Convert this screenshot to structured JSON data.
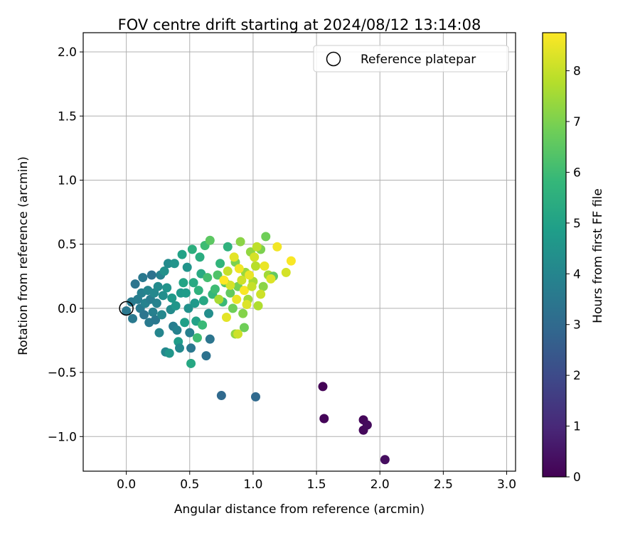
{
  "chart_data": {
    "type": "scatter",
    "title": "FOV centre drift starting at 2024/08/12 13:14:08",
    "xlabel": "Angular distance from reference (arcmin)",
    "ylabel": "Rotation from reference (arcmin)",
    "xlim": [
      -0.34,
      3.07
    ],
    "ylim": [
      -1.27,
      2.15
    ],
    "xticks": [
      0.0,
      0.5,
      1.0,
      1.5,
      2.0,
      2.5,
      3.0
    ],
    "xtick_labels": [
      "0.0",
      "0.5",
      "1.0",
      "1.5",
      "2.0",
      "2.5",
      "3.0"
    ],
    "yticks": [
      -1.0,
      -0.5,
      0.0,
      0.5,
      1.0,
      1.5,
      2.0
    ],
    "ytick_labels": [
      "−1.0",
      "−0.5",
      "0.0",
      "0.5",
      "1.0",
      "1.5",
      "2.0"
    ],
    "grid": true,
    "legend": {
      "placement": "upper right",
      "entries": [
        "Reference platepar"
      ]
    },
    "reference_point": {
      "x": 0.0,
      "y": 0.0
    },
    "colorbar": {
      "label": "Hours from first FF file",
      "range": [
        0,
        8.75
      ],
      "ticks": [
        0,
        1,
        2,
        3,
        4,
        5,
        6,
        7,
        8
      ],
      "tick_labels": [
        "0",
        "1",
        "2",
        "3",
        "4",
        "5",
        "6",
        "7",
        "8"
      ],
      "colormap": [
        "#440154",
        "#482878",
        "#3e4989",
        "#31688e",
        "#26828e",
        "#1f9e89",
        "#35b779",
        "#6ece58",
        "#b5de2b",
        "#fde725"
      ]
    },
    "series": [
      {
        "points": [
          {
            "x": 1.55,
            "y": -0.61,
            "c": 0.05
          },
          {
            "x": 1.56,
            "y": -0.86,
            "c": 0.1
          },
          {
            "x": 1.87,
            "y": -0.87,
            "c": 0.15
          },
          {
            "x": 1.87,
            "y": -0.95,
            "c": 0.2
          },
          {
            "x": 1.9,
            "y": -0.91,
            "c": 0.25
          },
          {
            "x": 2.04,
            "y": -1.18,
            "c": 0.3
          },
          {
            "x": 0.75,
            "y": -0.68,
            "c": 3.0
          },
          {
            "x": 1.02,
            "y": -0.69,
            "c": 3.0
          },
          {
            "x": 0.0,
            "y": -0.02,
            "c": 3.5
          },
          {
            "x": 0.04,
            "y": 0.05,
            "c": 3.6
          },
          {
            "x": 0.05,
            "y": -0.08,
            "c": 3.55
          },
          {
            "x": 0.07,
            "y": 0.19,
            "c": 3.4
          },
          {
            "x": 0.09,
            "y": 0.07,
            "c": 3.7
          },
          {
            "x": 0.11,
            "y": 0.0,
            "c": 3.6
          },
          {
            "x": 0.12,
            "y": 0.12,
            "c": 3.8
          },
          {
            "x": 0.13,
            "y": 0.24,
            "c": 3.5
          },
          {
            "x": 0.14,
            "y": -0.05,
            "c": 3.4
          },
          {
            "x": 0.15,
            "y": 0.04,
            "c": 3.9
          },
          {
            "x": 0.17,
            "y": 0.14,
            "c": 4.0
          },
          {
            "x": 0.18,
            "y": -0.11,
            "c": 3.6
          },
          {
            "x": 0.19,
            "y": 0.07,
            "c": 3.7
          },
          {
            "x": 0.2,
            "y": 0.26,
            "c": 3.3
          },
          {
            "x": 0.21,
            "y": -0.03,
            "c": 3.8
          },
          {
            "x": 0.22,
            "y": 0.12,
            "c": 4.1
          },
          {
            "x": 0.23,
            "y": -0.09,
            "c": 3.5
          },
          {
            "x": 0.24,
            "y": 0.04,
            "c": 3.9
          },
          {
            "x": 0.25,
            "y": 0.17,
            "c": 4.2
          },
          {
            "x": 0.26,
            "y": -0.19,
            "c": 4.0
          },
          {
            "x": 0.27,
            "y": 0.26,
            "c": 3.9
          },
          {
            "x": 0.28,
            "y": -0.05,
            "c": 4.1
          },
          {
            "x": 0.29,
            "y": 0.1,
            "c": 4.3
          },
          {
            "x": 0.3,
            "y": 0.29,
            "c": 4.4
          },
          {
            "x": 0.31,
            "y": -0.34,
            "c": 4.1
          },
          {
            "x": 0.32,
            "y": 0.16,
            "c": 4.5
          },
          {
            "x": 0.33,
            "y": 0.35,
            "c": 4.2
          },
          {
            "x": 0.34,
            "y": -0.35,
            "c": 4.6
          },
          {
            "x": 0.35,
            "y": -0.01,
            "c": 4.2
          },
          {
            "x": 0.36,
            "y": 0.08,
            "c": 4.7
          },
          {
            "x": 0.37,
            "y": -0.14,
            "c": 3.7
          },
          {
            "x": 0.38,
            "y": 0.35,
            "c": 4.5
          },
          {
            "x": 0.39,
            "y": 0.02,
            "c": 4.6
          },
          {
            "x": 0.4,
            "y": -0.17,
            "c": 3.9
          },
          {
            "x": 0.41,
            "y": -0.26,
            "c": 4.8
          },
          {
            "x": 0.42,
            "y": -0.31,
            "c": 4.1
          },
          {
            "x": 0.43,
            "y": 0.12,
            "c": 4.7
          },
          {
            "x": 0.44,
            "y": 0.42,
            "c": 5.0
          },
          {
            "x": 0.45,
            "y": 0.2,
            "c": 5.1
          },
          {
            "x": 0.46,
            "y": -0.11,
            "c": 4.9
          },
          {
            "x": 0.47,
            "y": 0.12,
            "c": 4.8
          },
          {
            "x": 0.48,
            "y": 0.32,
            "c": 4.5
          },
          {
            "x": 0.49,
            "y": 0.0,
            "c": 4.4
          },
          {
            "x": 0.5,
            "y": -0.19,
            "c": 3.8
          },
          {
            "x": 0.51,
            "y": -0.31,
            "c": 3.5
          },
          {
            "x": 0.51,
            "y": -0.43,
            "c": 5.2
          },
          {
            "x": 0.52,
            "y": 0.46,
            "c": 5.5
          },
          {
            "x": 0.53,
            "y": 0.2,
            "c": 5.3
          },
          {
            "x": 0.54,
            "y": 0.04,
            "c": 4.7
          },
          {
            "x": 0.55,
            "y": -0.1,
            "c": 5.0
          },
          {
            "x": 0.56,
            "y": -0.23,
            "c": 6.0
          },
          {
            "x": 0.57,
            "y": 0.14,
            "c": 5.6
          },
          {
            "x": 0.58,
            "y": 0.4,
            "c": 5.4
          },
          {
            "x": 0.59,
            "y": 0.27,
            "c": 5.3
          },
          {
            "x": 0.6,
            "y": -0.13,
            "c": 5.9
          },
          {
            "x": 0.61,
            "y": 0.06,
            "c": 5.2
          },
          {
            "x": 0.62,
            "y": 0.49,
            "c": 6.0
          },
          {
            "x": 0.63,
            "y": -0.37,
            "c": 3.3
          },
          {
            "x": 0.64,
            "y": 0.24,
            "c": 6.1
          },
          {
            "x": 0.65,
            "y": -0.04,
            "c": 4.3
          },
          {
            "x": 0.66,
            "y": 0.53,
            "c": 6.5
          },
          {
            "x": 0.66,
            "y": -0.24,
            "c": 3.4
          },
          {
            "x": 0.68,
            "y": 0.11,
            "c": 5.8
          },
          {
            "x": 0.7,
            "y": 0.15,
            "c": 6.0
          },
          {
            "x": 0.72,
            "y": 0.26,
            "c": 6.3
          },
          {
            "x": 0.74,
            "y": 0.35,
            "c": 5.7
          },
          {
            "x": 0.76,
            "y": 0.05,
            "c": 5.9
          },
          {
            "x": 0.78,
            "y": 0.2,
            "c": 6.4
          },
          {
            "x": 0.8,
            "y": 0.48,
            "c": 5.6
          },
          {
            "x": 0.82,
            "y": 0.12,
            "c": 6.6
          },
          {
            "x": 0.84,
            "y": 0.0,
            "c": 6.8
          },
          {
            "x": 0.86,
            "y": 0.36,
            "c": 7.0
          },
          {
            "x": 0.88,
            "y": 0.17,
            "c": 6.9
          },
          {
            "x": 0.9,
            "y": 0.52,
            "c": 7.2
          },
          {
            "x": 0.92,
            "y": -0.04,
            "c": 7.1
          },
          {
            "x": 0.94,
            "y": 0.28,
            "c": 7.4
          },
          {
            "x": 0.96,
            "y": 0.07,
            "c": 7.5
          },
          {
            "x": 0.98,
            "y": 0.44,
            "c": 7.3
          },
          {
            "x": 1.0,
            "y": 0.21,
            "c": 7.6
          },
          {
            "x": 1.02,
            "y": 0.33,
            "c": 7.8
          },
          {
            "x": 1.04,
            "y": 0.02,
            "c": 7.7
          },
          {
            "x": 1.06,
            "y": 0.46,
            "c": 7.0
          },
          {
            "x": 1.08,
            "y": 0.17,
            "c": 7.2
          },
          {
            "x": 1.1,
            "y": 0.56,
            "c": 6.8
          },
          {
            "x": 1.12,
            "y": 0.26,
            "c": 7.5
          },
          {
            "x": 1.16,
            "y": 0.25,
            "c": 6.6
          },
          {
            "x": 0.86,
            "y": -0.2,
            "c": 7.3
          },
          {
            "x": 0.93,
            "y": -0.15,
            "c": 6.8
          },
          {
            "x": 0.8,
            "y": 0.29,
            "c": 8.0
          },
          {
            "x": 0.82,
            "y": 0.18,
            "c": 8.2
          },
          {
            "x": 0.85,
            "y": 0.4,
            "c": 8.4
          },
          {
            "x": 0.87,
            "y": 0.07,
            "c": 8.5
          },
          {
            "x": 0.89,
            "y": 0.31,
            "c": 8.6
          },
          {
            "x": 0.91,
            "y": 0.22,
            "c": 8.1
          },
          {
            "x": 0.93,
            "y": 0.14,
            "c": 8.7
          },
          {
            "x": 0.95,
            "y": 0.03,
            "c": 8.3
          },
          {
            "x": 0.97,
            "y": 0.26,
            "c": 8.5
          },
          {
            "x": 0.99,
            "y": 0.17,
            "c": 8.0
          },
          {
            "x": 1.01,
            "y": 0.4,
            "c": 8.2
          },
          {
            "x": 1.03,
            "y": 0.48,
            "c": 7.9
          },
          {
            "x": 1.06,
            "y": 0.11,
            "c": 8.1
          },
          {
            "x": 1.09,
            "y": 0.33,
            "c": 8.5
          },
          {
            "x": 1.14,
            "y": 0.23,
            "c": 8.3
          },
          {
            "x": 1.19,
            "y": 0.48,
            "c": 8.6
          },
          {
            "x": 1.26,
            "y": 0.28,
            "c": 8.2
          },
          {
            "x": 1.3,
            "y": 0.37,
            "c": 8.7
          },
          {
            "x": 0.77,
            "y": 0.22,
            "c": 8.8
          },
          {
            "x": 0.79,
            "y": -0.07,
            "c": 8.4
          },
          {
            "x": 0.88,
            "y": -0.2,
            "c": 8.1
          },
          {
            "x": 0.73,
            "y": 0.07,
            "c": 7.6
          }
        ]
      }
    ]
  }
}
